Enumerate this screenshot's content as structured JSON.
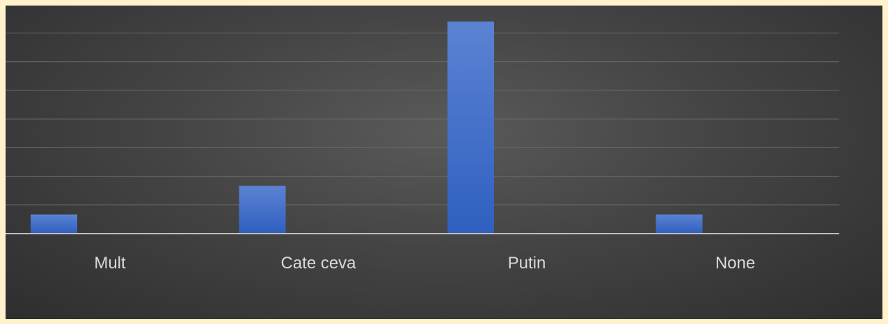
{
  "chart_data": {
    "type": "bar",
    "categories": [
      "Mult",
      "Cate ceva",
      "Putin",
      "None"
    ],
    "values": [
      1,
      2.5,
      11.1,
      1
    ],
    "ylim": [
      0,
      11.5
    ],
    "yticks": [
      0,
      1.5,
      3,
      4.5,
      6,
      7.5,
      9,
      10.5
    ],
    "grid": true,
    "legend": "none",
    "title": "",
    "xlabel": "",
    "ylabel": "",
    "colors": {
      "bar_top": "#5b83d3",
      "bar_bottom": "#2f5fbf",
      "grid": "#6a6a6a",
      "axis": "#bfbfbf",
      "label": "#d9d9d9"
    }
  }
}
